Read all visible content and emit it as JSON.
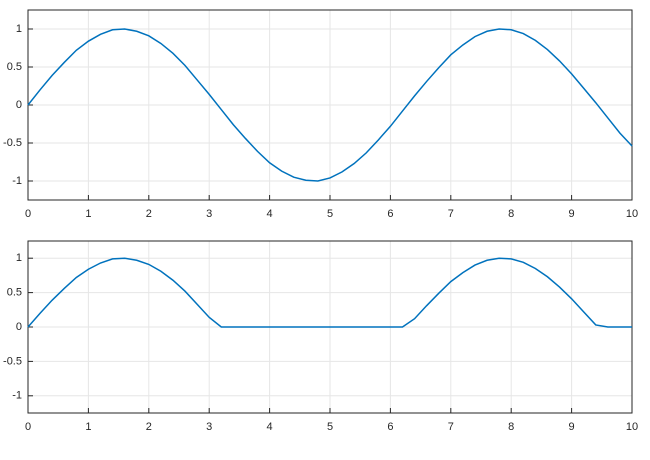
{
  "chart_data": [
    {
      "type": "line",
      "x": [
        0,
        0.2,
        0.4,
        0.6,
        0.8,
        1,
        1.2,
        1.4,
        1.6,
        1.8,
        2,
        2.2,
        2.4,
        2.6,
        2.8,
        3,
        3.2,
        3.4,
        3.6,
        3.8,
        4,
        4.2,
        4.4,
        4.6,
        4.8,
        5,
        5.2,
        5.4,
        5.6,
        5.8,
        6,
        6.2,
        6.4,
        6.6,
        6.8,
        7,
        7.2,
        7.4,
        7.6,
        7.8,
        8,
        8.2,
        8.4,
        8.6,
        8.8,
        9,
        9.2,
        9.4,
        9.6,
        9.8,
        10
      ],
      "series": [
        {
          "color": "#0072bd",
          "values": [
            0,
            0.2,
            0.39,
            0.56,
            0.72,
            0.84,
            0.93,
            0.99,
            1,
            0.97,
            0.91,
            0.81,
            0.68,
            0.52,
            0.33,
            0.14,
            -0.06,
            -0.26,
            -0.44,
            -0.61,
            -0.76,
            -0.87,
            -0.95,
            -0.99,
            -1,
            -0.96,
            -0.88,
            -0.77,
            -0.63,
            -0.46,
            -0.28,
            -0.08,
            0.12,
            0.31,
            0.49,
            0.66,
            0.79,
            0.9,
            0.97,
            1,
            0.99,
            0.94,
            0.85,
            0.73,
            0.58,
            0.41,
            0.22,
            0.03,
            -0.17,
            -0.37,
            -0.54
          ]
        }
      ],
      "xlim": [
        0,
        10
      ],
      "xticks": [
        0,
        1,
        2,
        3,
        4,
        5,
        6,
        7,
        8,
        9,
        10
      ],
      "ylim": [
        -1.25,
        1.25
      ],
      "yticks": [
        -1,
        -0.5,
        0,
        0.5,
        1
      ],
      "grid": true
    },
    {
      "type": "line",
      "x": [
        0,
        0.2,
        0.4,
        0.6,
        0.8,
        1,
        1.2,
        1.4,
        1.6,
        1.8,
        2,
        2.2,
        2.4,
        2.6,
        2.8,
        3,
        3.2,
        3.4,
        3.6,
        3.8,
        4,
        4.2,
        4.4,
        4.6,
        4.8,
        5,
        5.2,
        5.4,
        5.6,
        5.8,
        6,
        6.2,
        6.4,
        6.6,
        6.8,
        7,
        7.2,
        7.4,
        7.6,
        7.8,
        8,
        8.2,
        8.4,
        8.6,
        8.8,
        9,
        9.2,
        9.4,
        9.6,
        9.8,
        10
      ],
      "series": [
        {
          "color": "#0072bd",
          "values": [
            0,
            0.2,
            0.39,
            0.56,
            0.72,
            0.84,
            0.93,
            0.99,
            1,
            0.97,
            0.91,
            0.81,
            0.68,
            0.52,
            0.33,
            0.14,
            0,
            0,
            0,
            0,
            0,
            0,
            0,
            0,
            0,
            0,
            0,
            0,
            0,
            0,
            0,
            0,
            0.12,
            0.31,
            0.49,
            0.66,
            0.79,
            0.9,
            0.97,
            1,
            0.99,
            0.94,
            0.85,
            0.73,
            0.58,
            0.41,
            0.22,
            0.03,
            0,
            0,
            0
          ]
        }
      ],
      "xlim": [
        0,
        10
      ],
      "xticks": [
        0,
        1,
        2,
        3,
        4,
        5,
        6,
        7,
        8,
        9,
        10
      ],
      "ylim": [
        -1.25,
        1.25
      ],
      "yticks": [
        -1,
        -0.5,
        0,
        0.5,
        1
      ],
      "grid": true
    }
  ]
}
